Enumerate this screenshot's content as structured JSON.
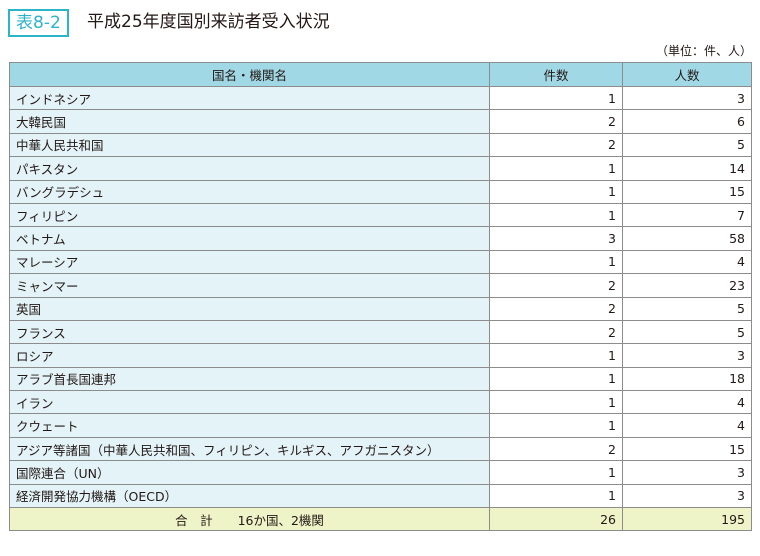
{
  "label": "表8-2",
  "title": "平成25年度国別来訪者受入状況",
  "unit": "（単位：件、人）",
  "headers": [
    "国名・機関名",
    "件数",
    "人数"
  ],
  "rows": [
    [
      "インドネシア",
      "1",
      "3"
    ],
    [
      "大韓民国",
      "2",
      "6"
    ],
    [
      "中華人民共和国",
      "2",
      "5"
    ],
    [
      "パキスタン",
      "1",
      "14"
    ],
    [
      "バングラデシュ",
      "1",
      "15"
    ],
    [
      "フィリピン",
      "1",
      "7"
    ],
    [
      "ベトナム",
      "3",
      "58"
    ],
    [
      "マレーシア",
      "1",
      "4"
    ],
    [
      "ミャンマー",
      "2",
      "23"
    ],
    [
      "英国",
      "2",
      "5"
    ],
    [
      "フランス",
      "2",
      "5"
    ],
    [
      "ロシア",
      "1",
      "3"
    ],
    [
      "アラブ首長国連邦",
      "1",
      "18"
    ],
    [
      "イラン",
      "1",
      "4"
    ],
    [
      "クウェート",
      "1",
      "4"
    ],
    [
      "アジア等諸国（中華人民共和国、フィリピン、キルギス、アフガニスタン）",
      "2",
      "15"
    ],
    [
      "国際連合（UN）",
      "1",
      "3"
    ],
    [
      "経済開発協力機構（OECD）",
      "1",
      "3"
    ]
  ],
  "total": {
    "label": "合　計　　16か国、2機関",
    "count": "26",
    "people": "195"
  }
}
